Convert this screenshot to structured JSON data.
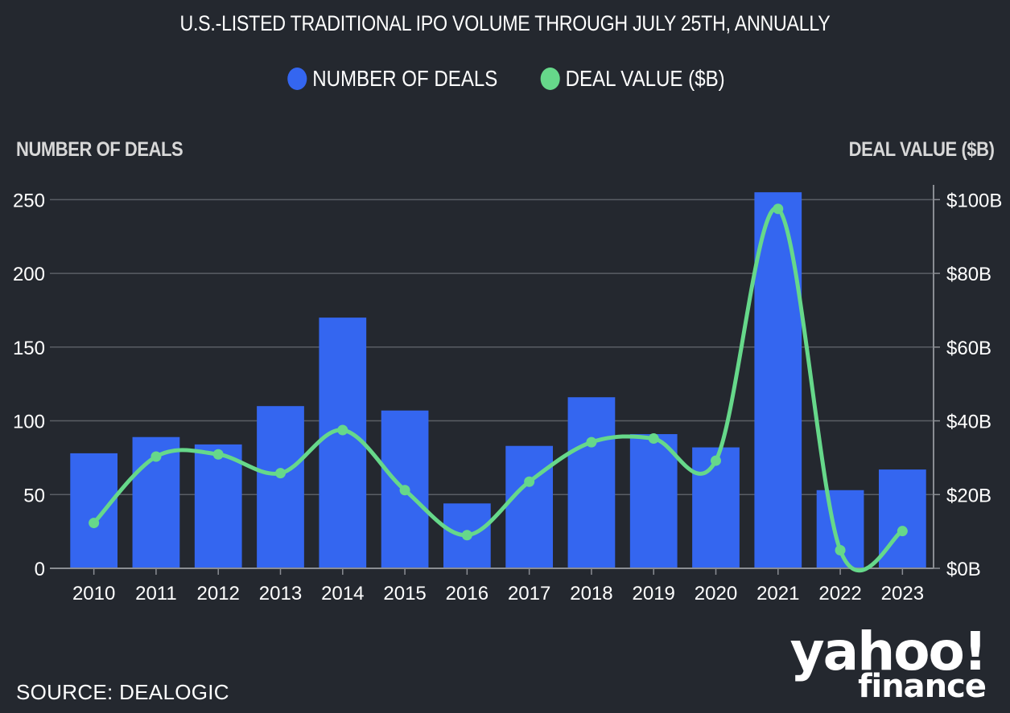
{
  "title": "U.S.-LISTED TRADITIONAL IPO VOLUME THROUGH JULY 25TH, ANNUALLY",
  "legend": [
    {
      "label": "NUMBER OF DEALS",
      "color": "#3466f0"
    },
    {
      "label": "DEAL VALUE ($B)",
      "color": "#66d88a"
    }
  ],
  "source": "SOURCE: DEALOGIC",
  "logo": {
    "main": "yahoo!",
    "sub": "finance"
  },
  "chart_data": {
    "type": "bar+line",
    "categories": [
      "2010",
      "2011",
      "2012",
      "2013",
      "2014",
      "2015",
      "2016",
      "2017",
      "2018",
      "2019",
      "2020",
      "2021",
      "2022",
      "2023"
    ],
    "series": [
      {
        "name": "NUMBER OF DEALS",
        "type": "bar",
        "axis": "left",
        "color": "#3466f0",
        "values": [
          78,
          89,
          84,
          110,
          170,
          107,
          44,
          83,
          116,
          91,
          82,
          255,
          53,
          67
        ]
      },
      {
        "name": "DEAL VALUE ($B)",
        "type": "line",
        "axis": "right",
        "color": "#66d88a",
        "values": [
          12.3,
          30.3,
          30.9,
          25.8,
          37.5,
          21.2,
          9.0,
          23.5,
          34.2,
          35.2,
          29.2,
          97.5,
          4.9,
          10.1
        ]
      }
    ],
    "ylabel_left": "NUMBER OF DEALS",
    "ylabel_right": "DEAL VALUE ($B)",
    "ylim_left": [
      0,
      260
    ],
    "ylim_right": [
      0,
      104
    ],
    "yticks_left": [
      0,
      50,
      100,
      150,
      200,
      250
    ],
    "yticks_right": [
      "$0B",
      "$20B",
      "$40B",
      "$60B",
      "$80B",
      "$100B"
    ],
    "yticks_right_values": [
      0,
      20,
      40,
      60,
      80,
      100
    ],
    "grid": true
  }
}
